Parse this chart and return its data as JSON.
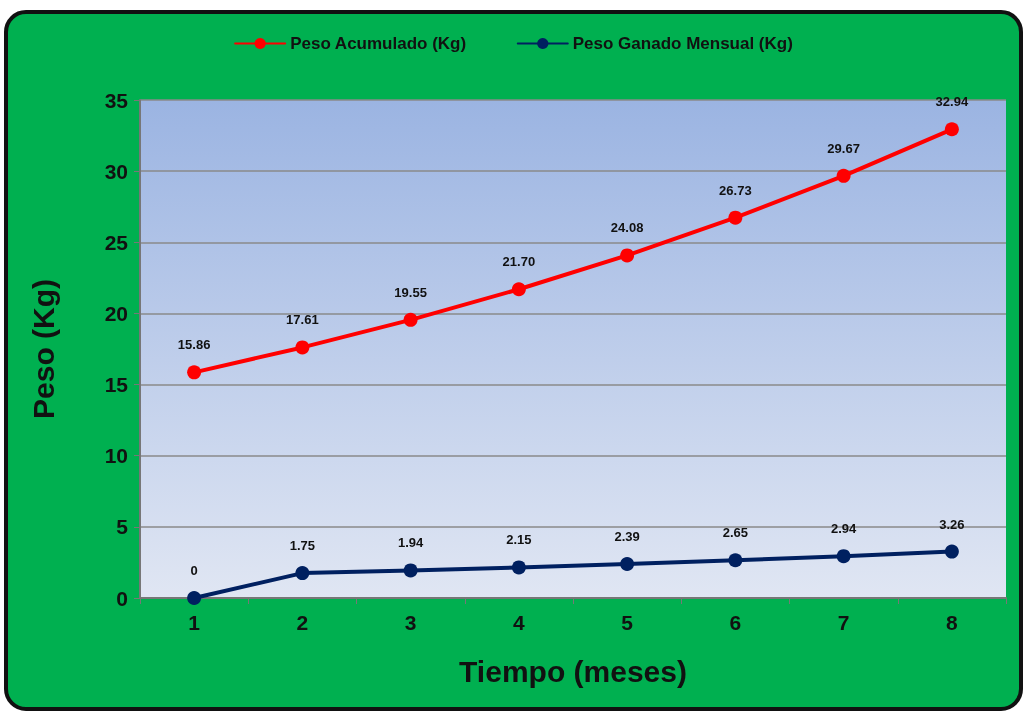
{
  "chart_data": {
    "type": "line",
    "xlabel": "Tiempo (meses)",
    "ylabel": "Peso (Kg)",
    "categories": [
      "1",
      "2",
      "3",
      "4",
      "5",
      "6",
      "7",
      "8"
    ],
    "series": [
      {
        "name": "Peso Acumulado (Kg)",
        "color": "#ff0000",
        "values": [
          15.86,
          17.61,
          19.55,
          21.7,
          24.08,
          26.73,
          29.67,
          32.94
        ],
        "value_labels": [
          "15.86",
          "17.61",
          "19.55",
          "21.70",
          "24.08",
          "26.73",
          "29.67",
          "32.94"
        ]
      },
      {
        "name": "Peso Ganado Mensual (Kg)",
        "color": "#002060",
        "values": [
          0,
          1.75,
          1.94,
          2.15,
          2.39,
          2.65,
          2.94,
          3.26
        ],
        "value_labels": [
          "0",
          "1.75",
          "1.94",
          "2.15",
          "2.39",
          "2.65",
          "2.94",
          "3.26"
        ]
      }
    ],
    "ylim": [
      0,
      35
    ],
    "yticks": [
      0,
      5,
      10,
      15,
      20,
      25,
      30,
      35
    ],
    "grid": "y",
    "legend": "top",
    "marker": "circle",
    "line_style": "solid"
  }
}
